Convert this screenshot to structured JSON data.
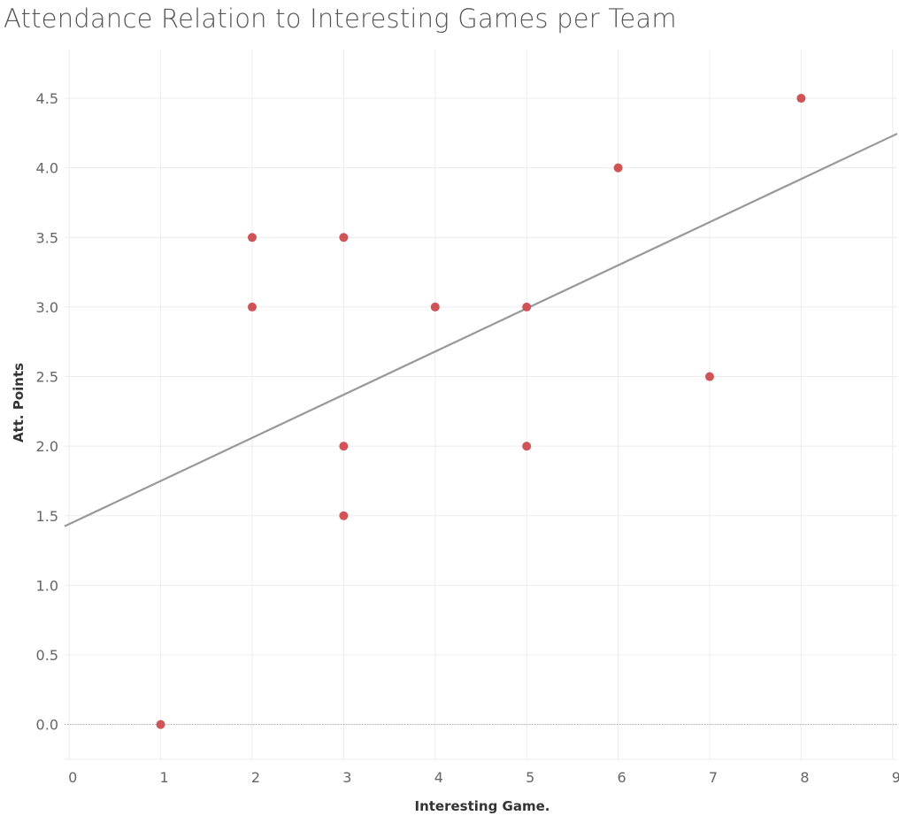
{
  "chart_data": {
    "type": "scatter",
    "title": "Attendance Relation to Interesting Games per Team",
    "xlabel": "Interesting Game.",
    "ylabel": "Att. Points",
    "xlim": [
      -0.05,
      9.05
    ],
    "ylim": [
      -0.25,
      4.85
    ],
    "x_ticks": [
      "0",
      "1",
      "2",
      "3",
      "4",
      "5",
      "6",
      "7",
      "8",
      "9"
    ],
    "y_ticks": [
      "0.0",
      "0.5",
      "1.0",
      "1.5",
      "2.0",
      "2.5",
      "3.0",
      "3.5",
      "4.0",
      "4.5"
    ],
    "grid": true,
    "zero_line": true,
    "points": [
      {
        "x": 1,
        "y": 0.0
      },
      {
        "x": 2,
        "y": 3.5
      },
      {
        "x": 2,
        "y": 3.0
      },
      {
        "x": 3,
        "y": 3.5
      },
      {
        "x": 3,
        "y": 2.0
      },
      {
        "x": 3,
        "y": 1.5
      },
      {
        "x": 4,
        "y": 3.0
      },
      {
        "x": 5,
        "y": 3.0
      },
      {
        "x": 5,
        "y": 2.0
      },
      {
        "x": 6,
        "y": 4.0
      },
      {
        "x": 7,
        "y": 2.5
      },
      {
        "x": 8,
        "y": 4.5
      }
    ],
    "trend_line": {
      "intercept": 1.44,
      "slope": 0.31
    },
    "colors": {
      "point": "#d05457",
      "trend": "#999999",
      "grid": "#ececec",
      "zero_line": "#b0b0b0"
    }
  }
}
